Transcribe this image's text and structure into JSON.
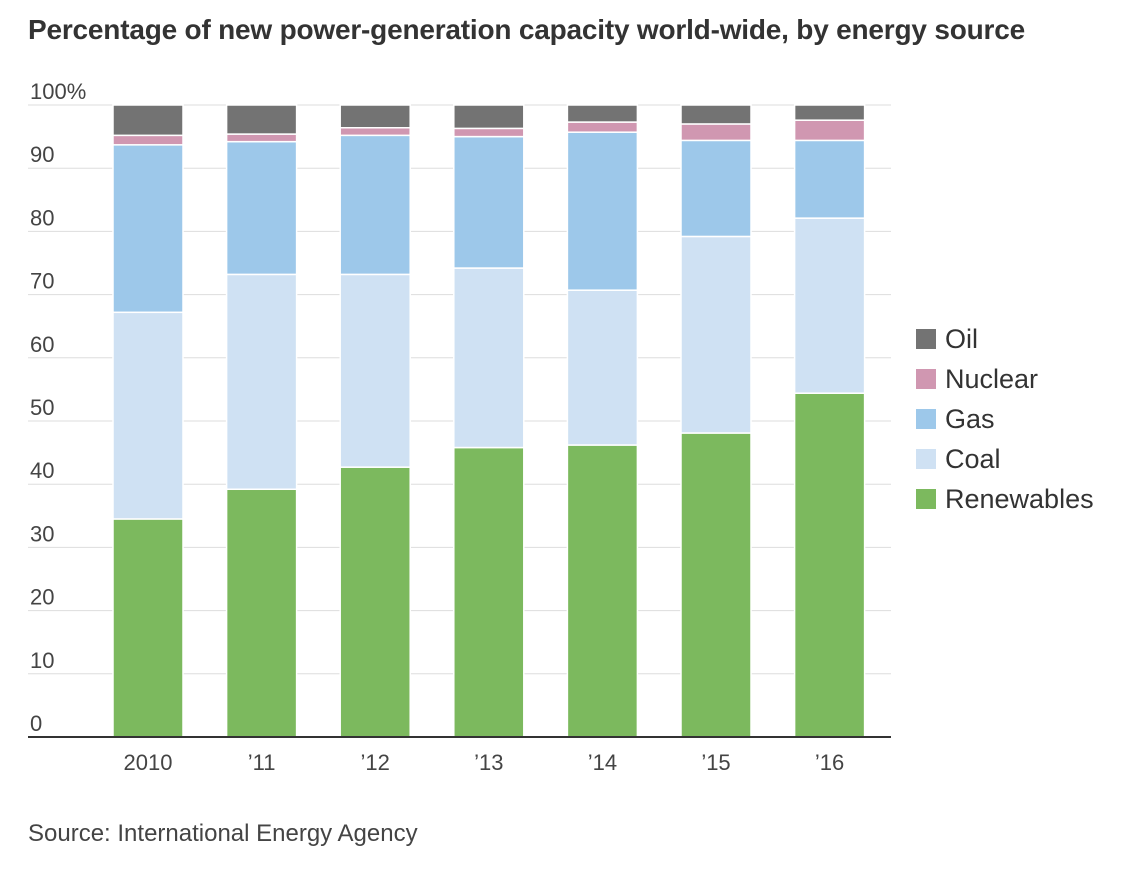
{
  "chart_data": {
    "type": "bar",
    "stacked": true,
    "title": "Percentage of new power-generation capacity world-wide, by energy source",
    "source": "Source: International Energy Agency",
    "categories": [
      "2010",
      "’11",
      "’12",
      "’13",
      "’14",
      "’15",
      "’16"
    ],
    "ylim": [
      0,
      100
    ],
    "yticks": [
      {
        "value": 0,
        "label": "0"
      },
      {
        "value": 10,
        "label": "10"
      },
      {
        "value": 20,
        "label": "20"
      },
      {
        "value": 30,
        "label": "30"
      },
      {
        "value": 40,
        "label": "40"
      },
      {
        "value": 50,
        "label": "50"
      },
      {
        "value": 60,
        "label": "60"
      },
      {
        "value": 70,
        "label": "70"
      },
      {
        "value": 80,
        "label": "80"
      },
      {
        "value": 90,
        "label": "90"
      },
      {
        "value": 100,
        "label": "100%"
      }
    ],
    "grid": true,
    "legend_position": "right",
    "series": [
      {
        "key": "renewables",
        "name": "Renewables",
        "color": "#7cb95e",
        "values": [
          34.5,
          39.2,
          42.7,
          45.8,
          46.2,
          48.1,
          54.4
        ]
      },
      {
        "key": "coal",
        "name": "Coal",
        "color": "#cfe1f3",
        "values": [
          32.7,
          34.0,
          30.5,
          28.4,
          24.5,
          31.1,
          27.7
        ]
      },
      {
        "key": "gas",
        "name": "Gas",
        "color": "#9dc8ea",
        "values": [
          26.5,
          21.0,
          22.0,
          20.8,
          25.0,
          15.2,
          12.3
        ]
      },
      {
        "key": "nuclear",
        "name": "Nuclear",
        "color": "#d097b1",
        "values": [
          1.5,
          1.2,
          1.2,
          1.3,
          1.6,
          2.6,
          3.2
        ]
      },
      {
        "key": "oil",
        "name": "Oil",
        "color": "#737373",
        "values": [
          4.8,
          4.6,
          3.6,
          3.7,
          2.7,
          3.0,
          2.4
        ]
      }
    ],
    "legend_order": [
      "oil",
      "nuclear",
      "gas",
      "coal",
      "renewables"
    ]
  }
}
